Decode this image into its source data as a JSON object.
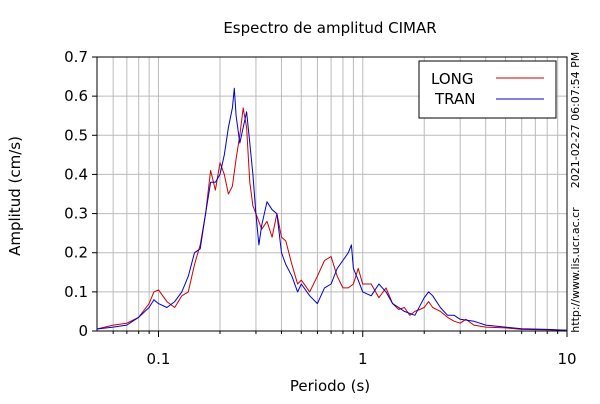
{
  "chart_data": {
    "type": "line",
    "title": "Espectro de amplitud CIMAR",
    "xlabel": "Periodo (s)",
    "ylabel": "Amplitud (cm/s)",
    "x_scale": "log",
    "xlim": [
      0.05,
      10
    ],
    "ylim": [
      0,
      0.7
    ],
    "x_ticks": [
      {
        "value": 0.1,
        "label": "0.1"
      },
      {
        "value": 1,
        "label": "1"
      },
      {
        "value": 10,
        "label": "10"
      }
    ],
    "y_ticks": [
      {
        "value": 0,
        "label": "0"
      },
      {
        "value": 0.1,
        "label": "0.1"
      },
      {
        "value": 0.2,
        "label": "0.2"
      },
      {
        "value": 0.3,
        "label": "0.3"
      },
      {
        "value": 0.4,
        "label": "0.4"
      },
      {
        "value": 0.5,
        "label": "0.5"
      },
      {
        "value": 0.6,
        "label": "0.6"
      },
      {
        "value": 0.7,
        "label": "0.7"
      }
    ],
    "grid": true,
    "legend_position": "top-right",
    "series": [
      {
        "name": "LONG",
        "color": "#cc0000",
        "x": [
          0.05,
          0.06,
          0.07,
          0.08,
          0.09,
          0.095,
          0.1,
          0.11,
          0.12,
          0.13,
          0.14,
          0.15,
          0.16,
          0.17,
          0.18,
          0.19,
          0.2,
          0.21,
          0.22,
          0.23,
          0.24,
          0.25,
          0.26,
          0.27,
          0.28,
          0.29,
          0.3,
          0.32,
          0.34,
          0.36,
          0.38,
          0.4,
          0.42,
          0.45,
          0.48,
          0.5,
          0.55,
          0.6,
          0.65,
          0.7,
          0.75,
          0.8,
          0.85,
          0.9,
          0.95,
          1.0,
          1.1,
          1.2,
          1.3,
          1.4,
          1.5,
          1.6,
          1.7,
          1.8,
          1.9,
          2.0,
          2.1,
          2.2,
          2.4,
          2.6,
          2.8,
          3.0,
          3.2,
          3.5,
          4.0,
          5.0,
          6.0,
          8.0,
          10.0
        ],
        "y": [
          0.005,
          0.015,
          0.02,
          0.035,
          0.07,
          0.1,
          0.105,
          0.075,
          0.06,
          0.09,
          0.1,
          0.17,
          0.22,
          0.3,
          0.41,
          0.36,
          0.43,
          0.4,
          0.35,
          0.37,
          0.44,
          0.5,
          0.57,
          0.52,
          0.38,
          0.32,
          0.3,
          0.26,
          0.28,
          0.24,
          0.3,
          0.24,
          0.23,
          0.17,
          0.12,
          0.13,
          0.1,
          0.14,
          0.18,
          0.19,
          0.14,
          0.11,
          0.11,
          0.12,
          0.16,
          0.12,
          0.12,
          0.085,
          0.11,
          0.07,
          0.055,
          0.06,
          0.04,
          0.05,
          0.055,
          0.06,
          0.075,
          0.06,
          0.05,
          0.035,
          0.025,
          0.02,
          0.03,
          0.015,
          0.01,
          0.008,
          0.004,
          0.003,
          0.002
        ]
      },
      {
        "name": "TRAN",
        "color": "#0000cc",
        "x": [
          0.05,
          0.06,
          0.07,
          0.08,
          0.09,
          0.095,
          0.1,
          0.11,
          0.12,
          0.13,
          0.14,
          0.15,
          0.16,
          0.17,
          0.18,
          0.19,
          0.2,
          0.21,
          0.22,
          0.23,
          0.235,
          0.24,
          0.25,
          0.26,
          0.27,
          0.28,
          0.29,
          0.3,
          0.31,
          0.32,
          0.34,
          0.36,
          0.38,
          0.4,
          0.42,
          0.45,
          0.48,
          0.5,
          0.55,
          0.6,
          0.65,
          0.7,
          0.75,
          0.8,
          0.85,
          0.88,
          0.9,
          0.95,
          1.0,
          1.1,
          1.2,
          1.3,
          1.4,
          1.5,
          1.6,
          1.8,
          2.0,
          2.1,
          2.2,
          2.4,
          2.6,
          2.8,
          3.0,
          3.5,
          4.0,
          5.0,
          6.0,
          8.0,
          10.0
        ],
        "y": [
          0.005,
          0.01,
          0.015,
          0.035,
          0.06,
          0.08,
          0.07,
          0.06,
          0.075,
          0.1,
          0.14,
          0.2,
          0.21,
          0.3,
          0.38,
          0.38,
          0.4,
          0.45,
          0.52,
          0.57,
          0.62,
          0.55,
          0.48,
          0.52,
          0.56,
          0.48,
          0.4,
          0.3,
          0.22,
          0.27,
          0.33,
          0.31,
          0.3,
          0.2,
          0.17,
          0.14,
          0.1,
          0.12,
          0.09,
          0.07,
          0.11,
          0.12,
          0.16,
          0.18,
          0.2,
          0.22,
          0.16,
          0.13,
          0.1,
          0.09,
          0.12,
          0.1,
          0.07,
          0.06,
          0.05,
          0.04,
          0.085,
          0.1,
          0.09,
          0.06,
          0.04,
          0.04,
          0.03,
          0.025,
          0.015,
          0.01,
          0.006,
          0.004,
          0.002
        ]
      }
    ]
  },
  "side_labels": {
    "timestamp": "2021-02-27 06:07:54 PM",
    "url": "http://www.lis.ucr.ac.cr"
  }
}
